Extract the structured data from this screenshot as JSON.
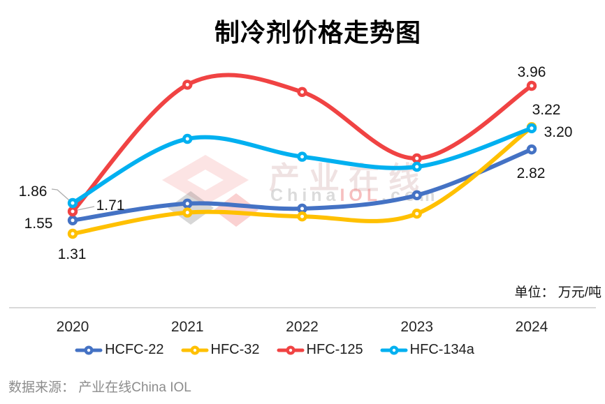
{
  "title": "制冷剂价格走势图",
  "unit_label": "单位： 万元/吨",
  "source_label": "数据来源： 产业在线China IOL",
  "watermark": {
    "brand_cn": "产业在线",
    "en_china": "China",
    "en_iol": "IOL",
    "en_com": ".com"
  },
  "axis_color": "#D9D9D9",
  "leader_color": "#ADADAD",
  "chart_data": {
    "type": "line",
    "title": "制冷剂价格走势图",
    "categories": [
      "2020",
      "2021",
      "2022",
      "2023",
      "2024"
    ],
    "series": [
      {
        "name": "HCFC-22",
        "color": "#4472C4",
        "values": [
          1.55,
          1.85,
          1.76,
          2.0,
          2.82
        ]
      },
      {
        "name": "HFC-32",
        "color": "#FFC000",
        "values": [
          1.31,
          1.69,
          1.62,
          1.67,
          3.22
        ]
      },
      {
        "name": "HFC-125",
        "color": "#F04343",
        "values": [
          1.71,
          3.98,
          3.85,
          2.66,
          3.96
        ]
      },
      {
        "name": "HFC-134a",
        "color": "#00B0F0",
        "values": [
          1.86,
          3.01,
          2.69,
          2.51,
          3.2
        ]
      }
    ],
    "data_labels_shown": {
      "2020": [
        1.86,
        1.71,
        1.55,
        1.31
      ],
      "2024": [
        3.96,
        3.22,
        3.2,
        2.82
      ]
    },
    "unit": "万元/吨",
    "xlabel": "",
    "ylabel": "",
    "ylim": [
      1.0,
      4.4
    ],
    "grid": false,
    "smooth": true,
    "legend_position": "bottom"
  }
}
